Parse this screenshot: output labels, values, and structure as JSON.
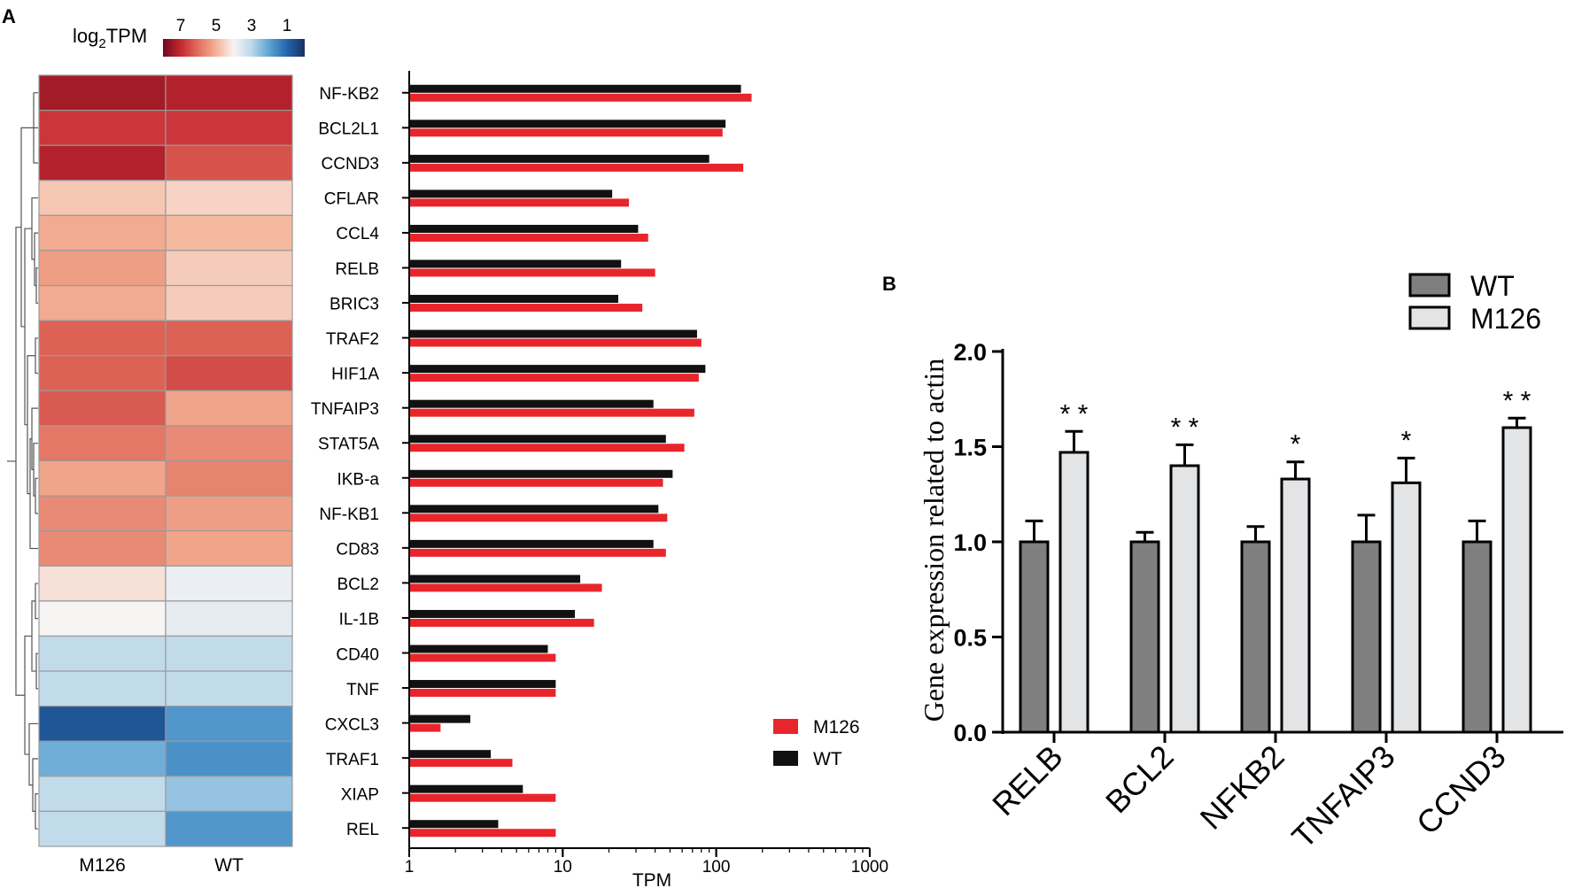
{
  "panels": {
    "a_label": "A",
    "b_label": "B"
  },
  "colors": {
    "m126": "#e8252b",
    "wt": "#111111",
    "wt_bar_b": "#7f7f7f",
    "m126_bar_b": "#e3e4e6",
    "scale": [
      "#6f0a1e",
      "#c4282f",
      "#e27060",
      "#f4b296",
      "#f7f4f4",
      "#bcd8ea",
      "#5da3d3",
      "#2166ac",
      "#1b2f63"
    ]
  },
  "chart_data": [
    {
      "type": "heatmap",
      "panel": "A",
      "title": "",
      "scale_label": "log",
      "scale_label_sub": "2",
      "scale_label_suffix": "TPM",
      "scale_ticks": [
        "7",
        "5",
        "3",
        "1"
      ],
      "scale_range": [
        8,
        0
      ],
      "columns": [
        "M126",
        "WT"
      ],
      "rows": [
        "NF-KB2",
        "BCL2L1",
        "CCND3",
        "CFLAR",
        "CCL4",
        "RELB",
        "BRIC3",
        "TRAF2",
        "HIF1A",
        "TNFAIP3",
        "STAT5A",
        "IKB-a",
        "NF-KB1",
        "CD83",
        "BCL2",
        "IL-1B",
        "CD40",
        "TNF",
        "CXCL3",
        "TRAF1",
        "XIAP",
        "REL"
      ],
      "values": [
        [
          7.4,
          7.2
        ],
        [
          6.8,
          6.8
        ],
        [
          7.2,
          6.4
        ],
        [
          4.7,
          4.5
        ],
        [
          5.1,
          4.9
        ],
        [
          5.3,
          4.6
        ],
        [
          5.1,
          4.6
        ],
        [
          6.2,
          6.2
        ],
        [
          6.2,
          6.5
        ],
        [
          6.3,
          5.2
        ],
        [
          5.9,
          5.6
        ],
        [
          5.2,
          5.7
        ],
        [
          5.6,
          5.3
        ],
        [
          5.6,
          5.2
        ],
        [
          4.3,
          3.8
        ],
        [
          4.0,
          3.7
        ],
        [
          3.1,
          3.1
        ],
        [
          3.1,
          3.1
        ],
        [
          0.7,
          1.8
        ],
        [
          2.2,
          1.7
        ],
        [
          3.1,
          2.6
        ],
        [
          3.1,
          1.8
        ]
      ],
      "dendrogram": "hierarchical clustering of rows"
    },
    {
      "type": "bar",
      "panel": "A",
      "orientation": "horizontal",
      "xlabel": "TPM",
      "xscale": "log",
      "xlim": [
        1,
        1000
      ],
      "xticks": [
        "1",
        "10",
        "100",
        "1000"
      ],
      "categories": [
        "NF-KB2",
        "BCL2L1",
        "CCND3",
        "CFLAR",
        "CCL4",
        "RELB",
        "BRIC3",
        "TRAF2",
        "HIF1A",
        "TNFAIP3",
        "STAT5A",
        "IKB-a",
        "NF-KB1",
        "CD83",
        "BCL2",
        "IL-1B",
        "CD40",
        "TNF",
        "CXCL3",
        "TRAF1",
        "XIAP",
        "REL"
      ],
      "series": [
        {
          "name": "WT",
          "values": [
            145,
            115,
            90,
            21,
            31,
            24,
            23,
            75,
            85,
            39,
            47,
            52,
            42,
            39,
            13,
            12,
            8,
            9,
            2.5,
            3.4,
            5.5,
            3.8
          ]
        },
        {
          "name": "M126",
          "values": [
            170,
            110,
            150,
            27,
            36,
            40,
            33,
            80,
            77,
            72,
            62,
            45,
            48,
            47,
            18,
            16,
            9,
            9,
            1.6,
            4.7,
            9,
            9
          ]
        }
      ],
      "legend": [
        "M126",
        "WT"
      ],
      "legend_position": "bottom-right"
    },
    {
      "type": "bar",
      "panel": "B",
      "ylabel": "Gene expression related to actin",
      "ylim": [
        0,
        2
      ],
      "yticks": [
        "0.0",
        "0.5",
        "1.0",
        "1.5",
        "2.0"
      ],
      "categories": [
        "RELB",
        "BCL2",
        "NFKB2",
        "TNFAIP3",
        "CCND3"
      ],
      "series": [
        {
          "name": "WT",
          "values": [
            1.0,
            1.0,
            1.0,
            1.0,
            1.0
          ],
          "errors": [
            0.11,
            0.05,
            0.08,
            0.14,
            0.11
          ]
        },
        {
          "name": "M126",
          "values": [
            1.47,
            1.4,
            1.33,
            1.31,
            1.6
          ],
          "errors": [
            0.11,
            0.11,
            0.09,
            0.13,
            0.05
          ]
        }
      ],
      "significance": [
        "* *",
        "* *",
        "*",
        "*",
        "* *"
      ],
      "legend": [
        "WT",
        "M126"
      ],
      "legend_position": "top-right"
    }
  ]
}
